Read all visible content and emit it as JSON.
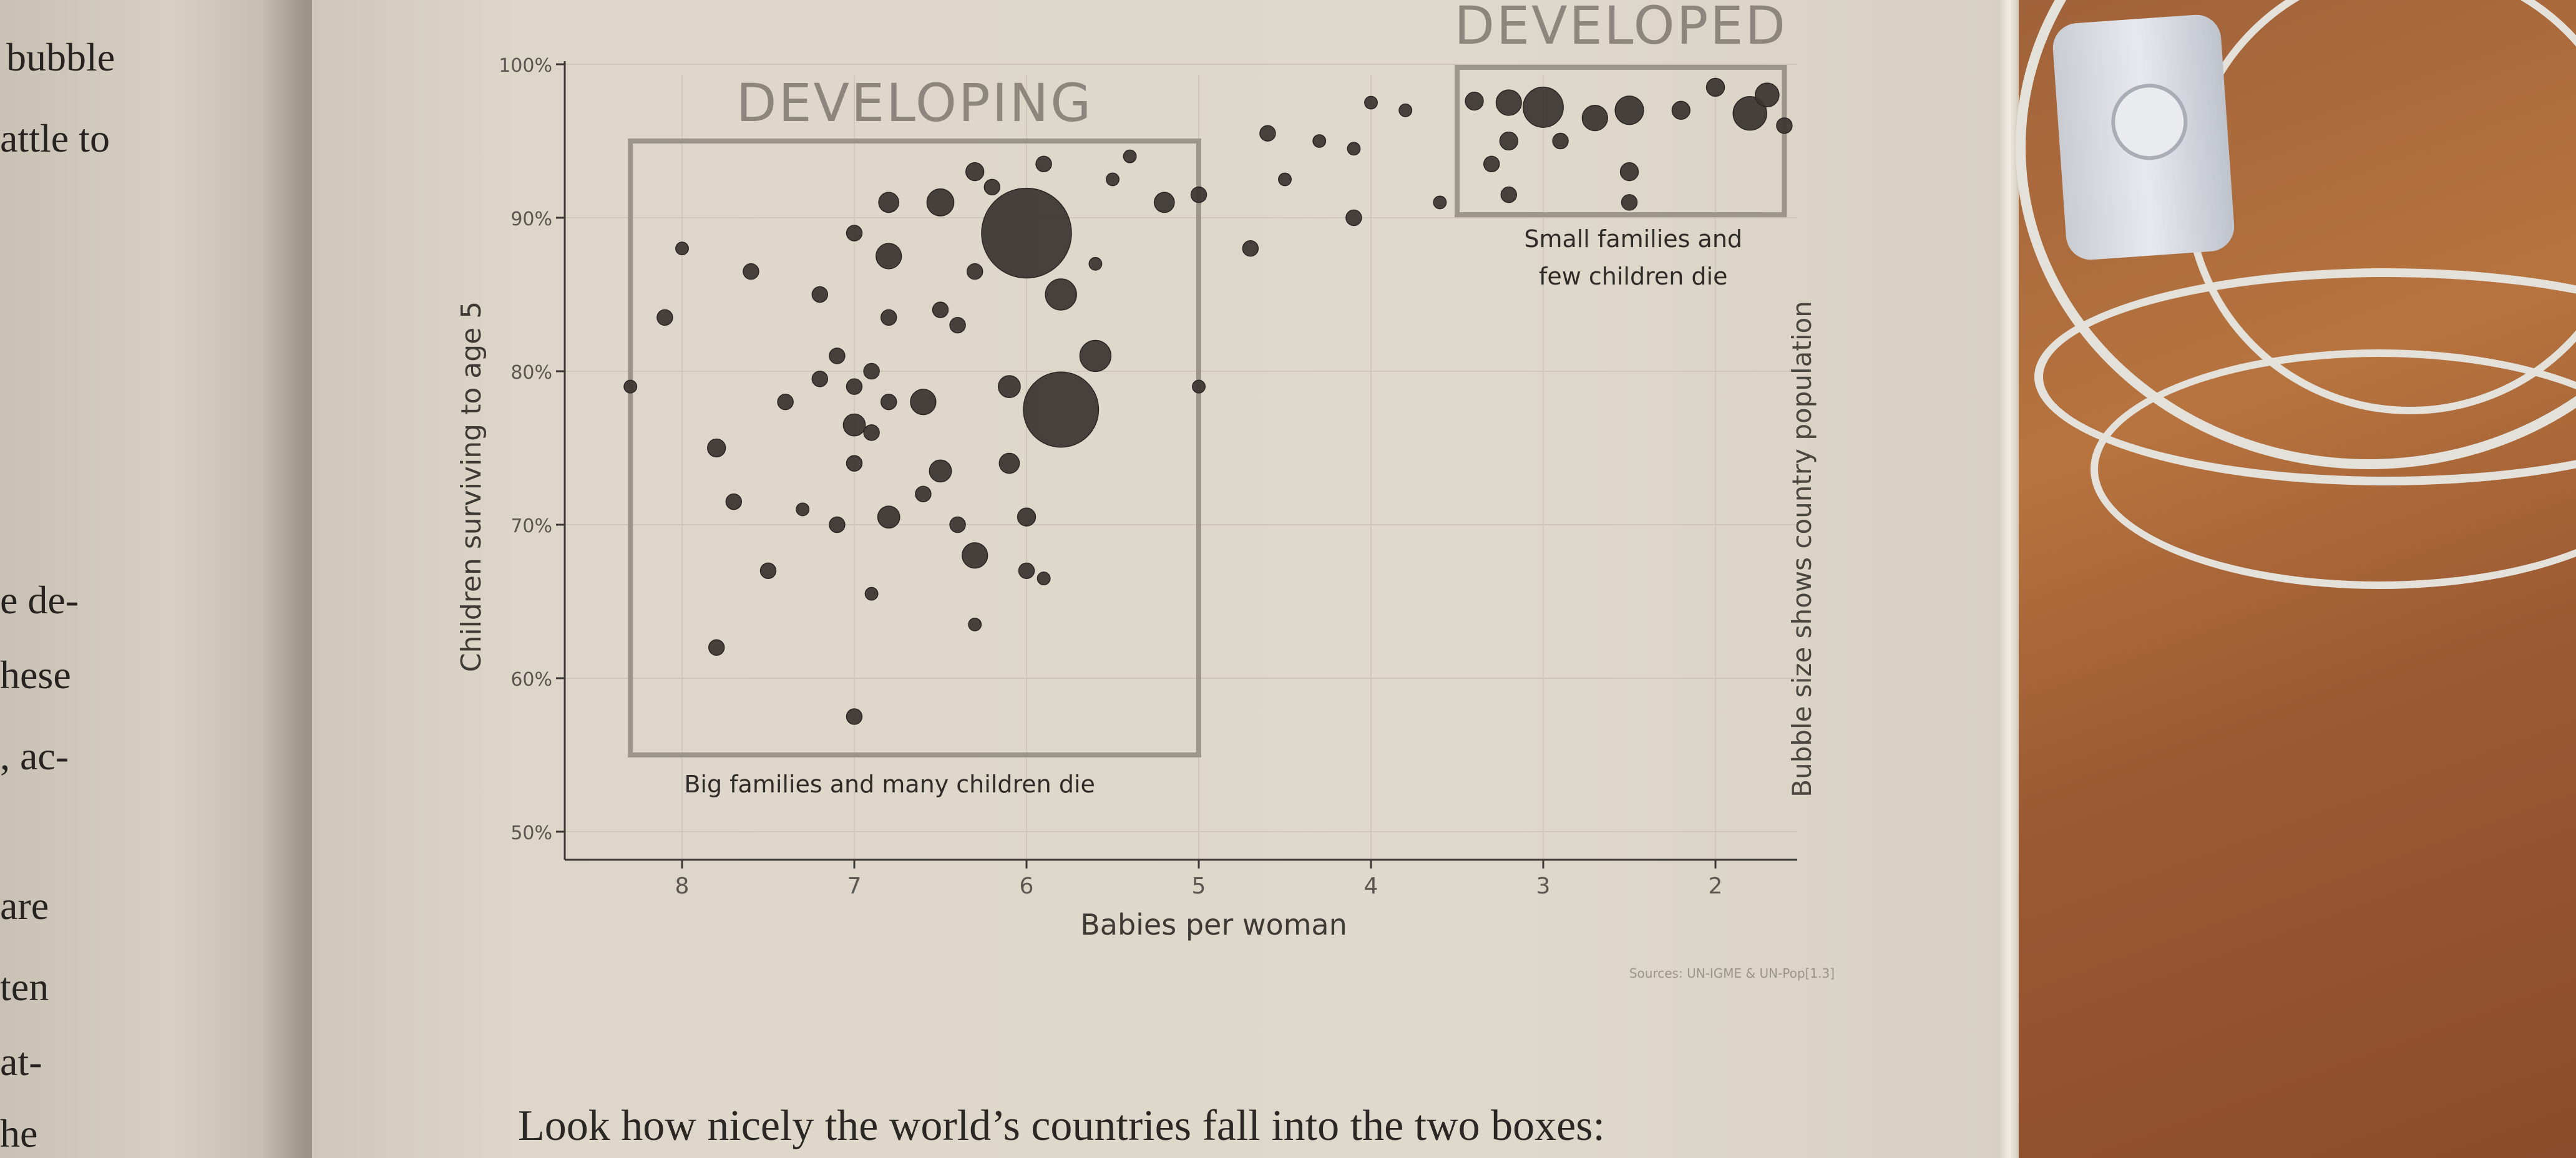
{
  "left_page": {
    "fragments": [
      "bubble",
      "attle to",
      "e de-",
      "hese",
      ", ac-",
      "are",
      "ten",
      "at-",
      "he"
    ]
  },
  "caption": "Look how nicely the world’s countries fall into the two boxes:",
  "chart_data": {
    "type": "scatter",
    "xlabel": "Babies per woman",
    "ylabel": "Children surviving to age 5",
    "size_label": "Bubble size shows country population",
    "source": "Sources: UN-IGME & UN-Pop[1.3]",
    "x_ticks": [
      "8",
      "7",
      "6",
      "5",
      "4",
      "3",
      "2"
    ],
    "y_ticks": [
      "50%",
      "60%",
      "70%",
      "80%",
      "90%",
      "100%"
    ],
    "xlim": [
      8.6,
      1.4
    ],
    "ylim": [
      48,
      100
    ],
    "x_reversed": true,
    "grid": true,
    "boxes": [
      {
        "label": "DEVELOPING",
        "caption": "Big families and many children die",
        "x0": 8.3,
        "x1": 5.0,
        "y0": 55,
        "y1": 95
      },
      {
        "label": "DEVELOPED",
        "caption_lines": [
          "Small families and",
          "few children die"
        ],
        "x0": 3.5,
        "x1": 1.6,
        "y0": 90.2,
        "y1": 99.8
      }
    ],
    "points": [
      {
        "x": 6.0,
        "y": 89.0,
        "s": 100
      },
      {
        "x": 5.8,
        "y": 77.5,
        "s": 70
      },
      {
        "x": 5.6,
        "y": 81.0,
        "s": 12
      },
      {
        "x": 5.8,
        "y": 85.0,
        "s": 12
      },
      {
        "x": 6.5,
        "y": 91.0,
        "s": 9
      },
      {
        "x": 6.8,
        "y": 87.5,
        "s": 8
      },
      {
        "x": 6.6,
        "y": 78.0,
        "s": 8
      },
      {
        "x": 6.3,
        "y": 68.0,
        "s": 8
      },
      {
        "x": 7.0,
        "y": 76.5,
        "s": 6
      },
      {
        "x": 6.8,
        "y": 70.5,
        "s": 6
      },
      {
        "x": 6.1,
        "y": 79.0,
        "s": 6
      },
      {
        "x": 6.5,
        "y": 73.5,
        "s": 6
      },
      {
        "x": 6.1,
        "y": 74.0,
        "s": 5
      },
      {
        "x": 6.8,
        "y": 91.0,
        "s": 5
      },
      {
        "x": 6.3,
        "y": 93.0,
        "s": 4
      },
      {
        "x": 5.2,
        "y": 91.0,
        "s": 5
      },
      {
        "x": 6.0,
        "y": 70.5,
        "s": 4
      },
      {
        "x": 7.8,
        "y": 75.0,
        "s": 4
      },
      {
        "x": 6.0,
        "y": 67.0,
        "s": 3
      },
      {
        "x": 7.0,
        "y": 89.0,
        "s": 3
      },
      {
        "x": 7.5,
        "y": 67.0,
        "s": 3
      },
      {
        "x": 7.0,
        "y": 57.5,
        "s": 3
      },
      {
        "x": 7.8,
        "y": 62.0,
        "s": 3
      },
      {
        "x": 8.1,
        "y": 83.5,
        "s": 3
      },
      {
        "x": 7.2,
        "y": 85.0,
        "s": 3
      },
      {
        "x": 7.6,
        "y": 86.5,
        "s": 3
      },
      {
        "x": 7.1,
        "y": 81.0,
        "s": 3
      },
      {
        "x": 6.9,
        "y": 80.0,
        "s": 3
      },
      {
        "x": 7.2,
        "y": 79.5,
        "s": 3
      },
      {
        "x": 7.0,
        "y": 79.0,
        "s": 3
      },
      {
        "x": 6.8,
        "y": 78.0,
        "s": 3
      },
      {
        "x": 6.9,
        "y": 76.0,
        "s": 3
      },
      {
        "x": 7.0,
        "y": 74.0,
        "s": 3
      },
      {
        "x": 6.6,
        "y": 72.0,
        "s": 3
      },
      {
        "x": 6.4,
        "y": 70.0,
        "s": 3
      },
      {
        "x": 6.5,
        "y": 84.0,
        "s": 3
      },
      {
        "x": 6.4,
        "y": 83.0,
        "s": 3
      },
      {
        "x": 6.8,
        "y": 83.5,
        "s": 3
      },
      {
        "x": 6.3,
        "y": 86.5,
        "s": 3
      },
      {
        "x": 5.9,
        "y": 93.5,
        "s": 3
      },
      {
        "x": 6.2,
        "y": 92.0,
        "s": 3
      },
      {
        "x": 5.5,
        "y": 92.5,
        "s": 2
      },
      {
        "x": 5.4,
        "y": 94.0,
        "s": 2
      },
      {
        "x": 7.7,
        "y": 71.5,
        "s": 3
      },
      {
        "x": 7.4,
        "y": 78.0,
        "s": 3
      },
      {
        "x": 7.1,
        "y": 70.0,
        "s": 3
      },
      {
        "x": 6.3,
        "y": 63.5,
        "s": 2
      },
      {
        "x": 6.9,
        "y": 65.5,
        "s": 2
      },
      {
        "x": 7.3,
        "y": 71.0,
        "s": 2
      },
      {
        "x": 5.9,
        "y": 66.5,
        "s": 2
      },
      {
        "x": 8.3,
        "y": 79.0,
        "s": 2
      },
      {
        "x": 8.0,
        "y": 88.0,
        "s": 2
      },
      {
        "x": 5.0,
        "y": 79.0,
        "s": 2
      },
      {
        "x": 5.6,
        "y": 87.0,
        "s": 2
      },
      {
        "x": 4.6,
        "y": 95.5,
        "s": 3
      },
      {
        "x": 4.7,
        "y": 88.0,
        "s": 3
      },
      {
        "x": 5.0,
        "y": 91.5,
        "s": 3
      },
      {
        "x": 4.3,
        "y": 95.0,
        "s": 2
      },
      {
        "x": 4.1,
        "y": 94.5,
        "s": 2
      },
      {
        "x": 4.0,
        "y": 97.5,
        "s": 2
      },
      {
        "x": 4.1,
        "y": 90.0,
        "s": 3
      },
      {
        "x": 3.6,
        "y": 91.0,
        "s": 2
      },
      {
        "x": 3.8,
        "y": 97.0,
        "s": 2
      },
      {
        "x": 4.5,
        "y": 92.5,
        "s": 2
      },
      {
        "x": 3.0,
        "y": 97.2,
        "s": 20
      },
      {
        "x": 3.2,
        "y": 97.5,
        "s": 8
      },
      {
        "x": 2.5,
        "y": 97.0,
        "s": 10
      },
      {
        "x": 2.7,
        "y": 96.5,
        "s": 8
      },
      {
        "x": 1.8,
        "y": 96.8,
        "s": 14
      },
      {
        "x": 1.7,
        "y": 98.0,
        "s": 7
      },
      {
        "x": 3.4,
        "y": 97.6,
        "s": 4
      },
      {
        "x": 3.2,
        "y": 95.0,
        "s": 4
      },
      {
        "x": 2.9,
        "y": 95.0,
        "s": 3
      },
      {
        "x": 2.5,
        "y": 93.0,
        "s": 4
      },
      {
        "x": 3.2,
        "y": 91.5,
        "s": 3
      },
      {
        "x": 2.5,
        "y": 91.0,
        "s": 3
      },
      {
        "x": 2.2,
        "y": 97.0,
        "s": 4
      },
      {
        "x": 2.0,
        "y": 98.5,
        "s": 4
      },
      {
        "x": 3.3,
        "y": 93.5,
        "s": 3
      },
      {
        "x": 1.6,
        "y": 96.0,
        "s": 3
      }
    ]
  }
}
